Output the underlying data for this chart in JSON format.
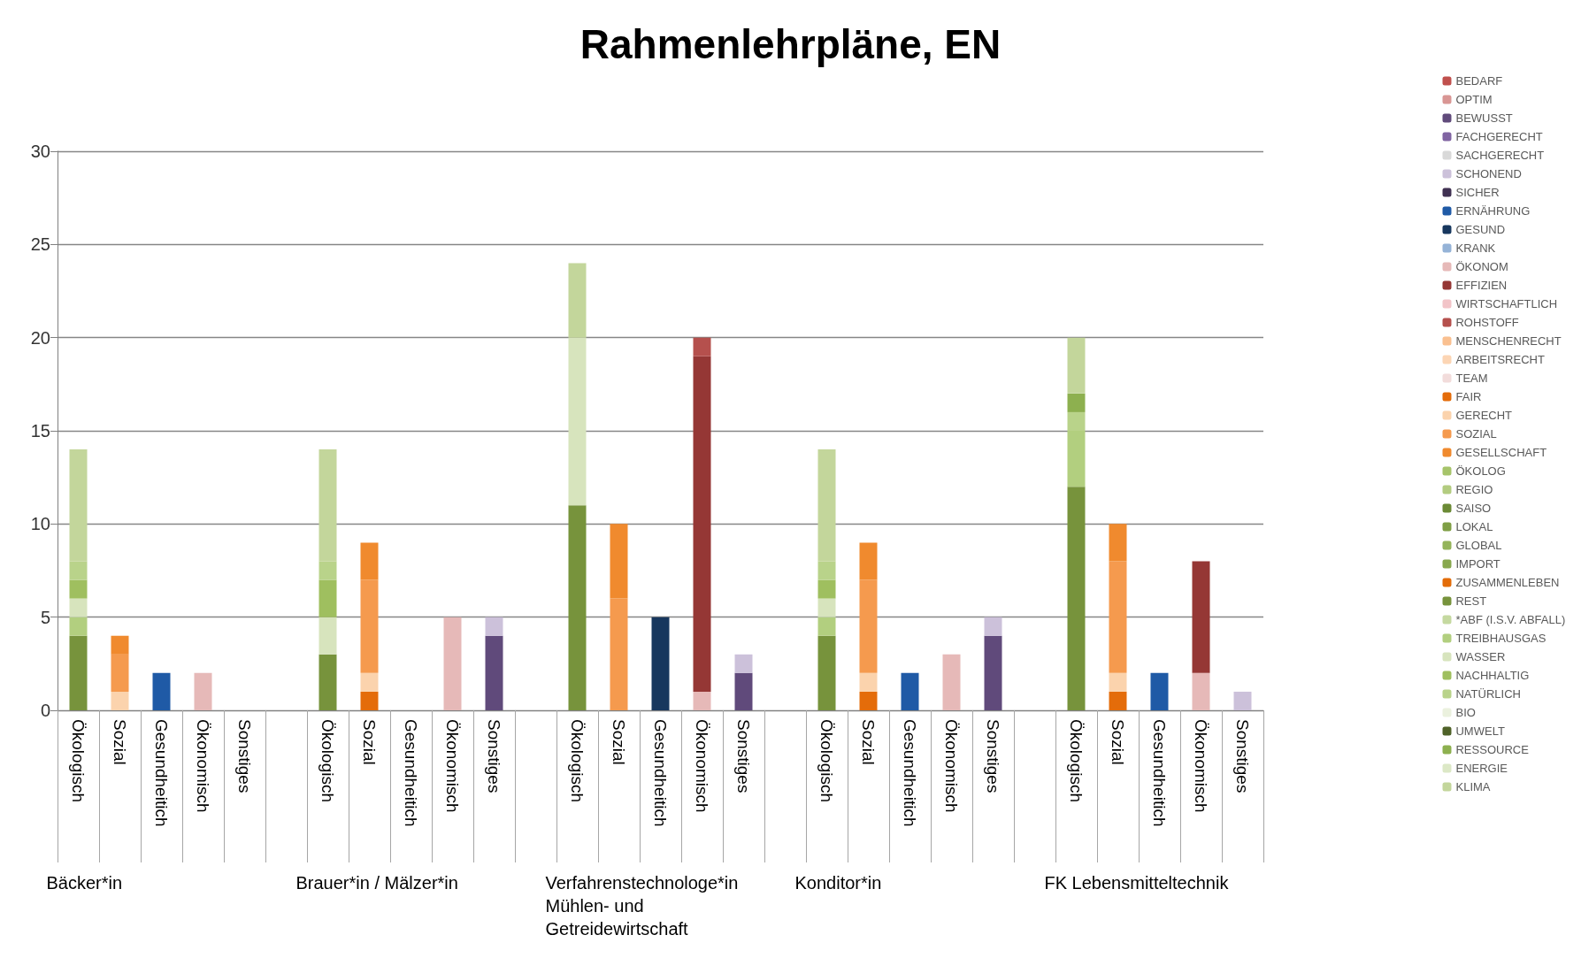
{
  "chart_data": {
    "type": "bar",
    "title": "Rahmenlehrpläne, EN",
    "stacked": true,
    "grid": "y",
    "legend": "right",
    "ylim": [
      0,
      30
    ],
    "yticks": [
      0,
      5,
      10,
      15,
      20,
      25,
      30
    ],
    "categories": [
      "Ökologisch",
      "Sozial",
      "Gesundheitich",
      "Ökonomisch",
      "Sonstiges",
      null,
      "Ökologisch",
      "Sozial",
      "Gesundheitich",
      "Ökonomisch",
      "Sonstiges",
      null,
      "Ökologisch",
      "Sozial",
      "Gesundheitich",
      "Ökonomisch",
      "Sonstiges",
      null,
      "Ökologisch",
      "Sozial",
      "Gesundheitich",
      "Ökonomisch",
      "Sonstiges",
      null,
      "Ökologisch",
      "Sozial",
      "Gesundheitich",
      "Ökonomisch",
      "Sonstiges"
    ],
    "annotations": [
      "Bäcker*in",
      "Brauer*in / Mälzer*in",
      "Verfahrenstechnologe*in Mühlen- und Getreidewirtschaft",
      "Konditor*in",
      "FK Lebensmitteltechnik"
    ],
    "series": [
      {
        "name": "BEDARF",
        "color": "#c0504d",
        "values": [
          null,
          null,
          null,
          null,
          null,
          null,
          null,
          null,
          null,
          null,
          null,
          null,
          null,
          null,
          null,
          null,
          null,
          null,
          null,
          null,
          null,
          null,
          null,
          null,
          null,
          null,
          null,
          null,
          null
        ]
      },
      {
        "name": "OPTIM",
        "color": "#d99694",
        "values": [
          null,
          null,
          null,
          null,
          null,
          null,
          null,
          null,
          null,
          null,
          null,
          null,
          null,
          null,
          null,
          null,
          null,
          null,
          null,
          null,
          null,
          null,
          null,
          null,
          null,
          null,
          null,
          null,
          null
        ]
      },
      {
        "name": "BEWUSST",
        "color": "#604a7b",
        "values": [
          null,
          null,
          null,
          null,
          null,
          null,
          null,
          null,
          null,
          null,
          4,
          null,
          null,
          null,
          null,
          null,
          2,
          null,
          null,
          null,
          null,
          null,
          4,
          null,
          null,
          null,
          null,
          null,
          null
        ]
      },
      {
        "name": "FACHGERECHT",
        "color": "#8064a2",
        "values": [
          null,
          null,
          null,
          null,
          null,
          null,
          null,
          null,
          null,
          null,
          null,
          null,
          null,
          null,
          null,
          null,
          null,
          null,
          null,
          null,
          null,
          null,
          null,
          null,
          null,
          null,
          null,
          null,
          null
        ]
      },
      {
        "name": "SACHGERECHT",
        "color": "#d9d9d9",
        "values": [
          null,
          null,
          null,
          null,
          null,
          null,
          null,
          null,
          null,
          null,
          null,
          null,
          null,
          null,
          null,
          null,
          null,
          null,
          null,
          null,
          null,
          null,
          null,
          null,
          null,
          null,
          null,
          null,
          null
        ]
      },
      {
        "name": "SCHONEND",
        "color": "#ccc1da",
        "values": [
          null,
          null,
          null,
          null,
          null,
          null,
          null,
          null,
          null,
          null,
          1,
          null,
          null,
          null,
          null,
          null,
          1,
          null,
          null,
          null,
          null,
          null,
          1,
          null,
          null,
          null,
          null,
          null,
          1
        ]
      },
      {
        "name": "SICHER",
        "color": "#403152",
        "values": [
          null,
          null,
          null,
          null,
          null,
          null,
          null,
          null,
          null,
          null,
          null,
          null,
          null,
          null,
          null,
          null,
          null,
          null,
          null,
          null,
          null,
          null,
          null,
          null,
          null,
          null,
          null,
          null,
          null
        ]
      },
      {
        "name": "ERNÄHRUNG",
        "color": "#1f5aa6",
        "values": [
          null,
          null,
          2,
          null,
          null,
          null,
          null,
          null,
          null,
          null,
          null,
          null,
          null,
          null,
          null,
          null,
          null,
          null,
          null,
          null,
          2,
          null,
          null,
          null,
          null,
          null,
          2,
          null,
          null
        ]
      },
      {
        "name": "GESUND",
        "color": "#17375e",
        "values": [
          null,
          null,
          null,
          null,
          null,
          null,
          null,
          null,
          null,
          null,
          null,
          null,
          null,
          null,
          5,
          null,
          null,
          null,
          null,
          null,
          null,
          null,
          null,
          null,
          null,
          null,
          null,
          null,
          null
        ]
      },
      {
        "name": "KRANK",
        "color": "#95b3d7",
        "values": [
          null,
          null,
          null,
          null,
          null,
          null,
          null,
          null,
          null,
          null,
          null,
          null,
          null,
          null,
          null,
          null,
          null,
          null,
          null,
          null,
          null,
          null,
          null,
          null,
          null,
          null,
          null,
          null,
          null
        ]
      },
      {
        "name": "ÖKONOM",
        "color": "#e6b9b8",
        "values": [
          null,
          null,
          null,
          2,
          null,
          null,
          null,
          null,
          null,
          5,
          null,
          null,
          null,
          null,
          null,
          1,
          null,
          null,
          null,
          null,
          null,
          3,
          null,
          null,
          null,
          null,
          null,
          2,
          null
        ]
      },
      {
        "name": "EFFIZIEN",
        "color": "#953735",
        "values": [
          null,
          null,
          null,
          null,
          null,
          null,
          null,
          null,
          null,
          null,
          null,
          null,
          null,
          null,
          null,
          18,
          null,
          null,
          null,
          null,
          null,
          null,
          null,
          null,
          null,
          null,
          null,
          6,
          null
        ]
      },
      {
        "name": "WIRTSCHAFTLICH",
        "color": "#f2c4c8",
        "values": [
          null,
          null,
          null,
          null,
          null,
          null,
          null,
          null,
          null,
          null,
          null,
          null,
          null,
          null,
          null,
          null,
          null,
          null,
          null,
          null,
          null,
          null,
          null,
          null,
          null,
          null,
          null,
          null,
          null
        ]
      },
      {
        "name": "ROHSTOFF",
        "color": "#b5504d",
        "values": [
          null,
          null,
          null,
          null,
          null,
          null,
          null,
          null,
          null,
          null,
          null,
          null,
          null,
          null,
          null,
          1,
          null,
          null,
          null,
          null,
          null,
          null,
          null,
          null,
          null,
          null,
          null,
          null,
          null
        ]
      },
      {
        "name": "MENSCHENRECHT",
        "color": "#fac090",
        "values": [
          null,
          null,
          null,
          null,
          null,
          null,
          null,
          null,
          null,
          null,
          null,
          null,
          null,
          null,
          null,
          null,
          null,
          null,
          null,
          null,
          null,
          null,
          null,
          null,
          null,
          null,
          null,
          null,
          null
        ]
      },
      {
        "name": "ARBEITSRECHT",
        "color": "#fcd5b4",
        "values": [
          null,
          null,
          null,
          null,
          null,
          null,
          null,
          null,
          null,
          null,
          null,
          null,
          null,
          null,
          null,
          null,
          null,
          null,
          null,
          null,
          null,
          null,
          null,
          null,
          null,
          null,
          null,
          null,
          null
        ]
      },
      {
        "name": "TEAM",
        "color": "#f2dcdb",
        "values": [
          null,
          null,
          null,
          null,
          null,
          null,
          null,
          null,
          null,
          null,
          null,
          null,
          null,
          null,
          null,
          null,
          null,
          null,
          null,
          null,
          null,
          null,
          null,
          null,
          null,
          null,
          null,
          null,
          null
        ]
      },
      {
        "name": "FAIR",
        "color": "#e46c0a",
        "values": [
          null,
          null,
          null,
          null,
          null,
          null,
          null,
          1,
          null,
          null,
          null,
          null,
          null,
          null,
          null,
          null,
          null,
          null,
          null,
          1,
          null,
          null,
          null,
          null,
          null,
          1,
          null,
          null,
          null
        ]
      },
      {
        "name": "GERECHT",
        "color": "#fbd3ad",
        "values": [
          null,
          1,
          null,
          null,
          null,
          null,
          null,
          1,
          null,
          null,
          null,
          null,
          null,
          null,
          null,
          null,
          null,
          null,
          null,
          1,
          null,
          null,
          null,
          null,
          null,
          1,
          null,
          null,
          null
        ]
      },
      {
        "name": "SOZIAL",
        "color": "#f59a4e",
        "values": [
          null,
          2,
          null,
          null,
          null,
          null,
          null,
          5,
          null,
          null,
          null,
          null,
          null,
          6,
          null,
          null,
          null,
          null,
          null,
          5,
          null,
          null,
          null,
          null,
          null,
          6,
          null,
          null,
          null
        ]
      },
      {
        "name": "GESELLSCHAFT",
        "color": "#f08a2e",
        "values": [
          null,
          1,
          null,
          null,
          null,
          null,
          null,
          2,
          null,
          null,
          null,
          null,
          null,
          4,
          null,
          null,
          null,
          null,
          null,
          2,
          null,
          null,
          null,
          null,
          null,
          2,
          null,
          null,
          null
        ]
      },
      {
        "name": "ÖKOLOG",
        "color": "#a6c46a",
        "values": [
          null,
          null,
          null,
          null,
          null,
          null,
          null,
          null,
          null,
          null,
          null,
          null,
          null,
          null,
          null,
          null,
          null,
          null,
          null,
          null,
          null,
          null,
          null,
          null,
          null,
          null,
          null,
          null,
          null
        ]
      },
      {
        "name": "REGIO",
        "color": "#b3cc80",
        "values": [
          null,
          null,
          null,
          null,
          null,
          null,
          null,
          null,
          null,
          null,
          null,
          null,
          null,
          null,
          null,
          null,
          null,
          null,
          null,
          null,
          null,
          null,
          null,
          null,
          null,
          null,
          null,
          null,
          null
        ]
      },
      {
        "name": "SAISO",
        "color": "#6b8a35",
        "values": [
          null,
          null,
          null,
          null,
          null,
          null,
          null,
          null,
          null,
          null,
          null,
          null,
          null,
          null,
          null,
          null,
          null,
          null,
          null,
          null,
          null,
          null,
          null,
          null,
          null,
          null,
          null,
          null,
          null
        ]
      },
      {
        "name": "LOKAL",
        "color": "#7f9f45",
        "values": [
          null,
          null,
          null,
          null,
          null,
          null,
          null,
          null,
          null,
          null,
          null,
          null,
          null,
          null,
          null,
          null,
          null,
          null,
          null,
          null,
          null,
          null,
          null,
          null,
          null,
          null,
          null,
          null,
          null
        ]
      },
      {
        "name": "GLOBAL",
        "color": "#94b45a",
        "values": [
          null,
          null,
          null,
          null,
          null,
          null,
          null,
          null,
          null,
          null,
          null,
          null,
          null,
          null,
          null,
          null,
          null,
          null,
          null,
          null,
          null,
          null,
          null,
          null,
          null,
          null,
          null,
          null,
          null
        ]
      },
      {
        "name": "IMPORT",
        "color": "#88a84e",
        "values": [
          null,
          null,
          null,
          null,
          null,
          null,
          null,
          null,
          null,
          null,
          null,
          null,
          null,
          null,
          null,
          null,
          null,
          null,
          null,
          null,
          null,
          null,
          null,
          null,
          null,
          null,
          null,
          null,
          null
        ]
      },
      {
        "name": "ZUSAMMENLEBEN",
        "color": "#e36c09",
        "values": [
          null,
          null,
          null,
          null,
          null,
          null,
          null,
          null,
          null,
          null,
          null,
          null,
          null,
          null,
          null,
          null,
          null,
          null,
          null,
          null,
          null,
          null,
          null,
          null,
          null,
          null,
          null,
          null,
          null
        ]
      },
      {
        "name": "REST",
        "color": "#77933c",
        "values": [
          4,
          null,
          null,
          null,
          null,
          null,
          3,
          null,
          null,
          null,
          null,
          null,
          11,
          null,
          null,
          null,
          null,
          null,
          4,
          null,
          null,
          null,
          null,
          null,
          12,
          null,
          null,
          null,
          null
        ]
      },
      {
        "name": "*ABF (I.S.V. ABFALL)",
        "color": "#c5d9a0",
        "values": [
          null,
          null,
          null,
          null,
          null,
          null,
          null,
          null,
          null,
          null,
          null,
          null,
          null,
          null,
          null,
          null,
          null,
          null,
          null,
          null,
          null,
          null,
          null,
          null,
          null,
          null,
          null,
          null,
          null
        ]
      },
      {
        "name": "TREIBHAUSGAS",
        "color": "#b2cf7f",
        "values": [
          1,
          null,
          null,
          null,
          null,
          null,
          null,
          null,
          null,
          null,
          null,
          null,
          null,
          null,
          null,
          null,
          null,
          null,
          1,
          null,
          null,
          null,
          null,
          null,
          3,
          null,
          null,
          null,
          null
        ]
      },
      {
        "name": "WASSER",
        "color": "#d7e4bd",
        "values": [
          1,
          null,
          null,
          null,
          null,
          null,
          2,
          null,
          null,
          null,
          null,
          null,
          9,
          null,
          null,
          null,
          null,
          null,
          1,
          null,
          null,
          null,
          null,
          null,
          null,
          null,
          null,
          null,
          null
        ]
      },
      {
        "name": "NACHHALTIG",
        "color": "#9fbf5f",
        "values": [
          1,
          null,
          null,
          null,
          null,
          null,
          2,
          null,
          null,
          null,
          null,
          null,
          null,
          null,
          null,
          null,
          null,
          null,
          1,
          null,
          null,
          null,
          null,
          null,
          null,
          null,
          null,
          null,
          null
        ]
      },
      {
        "name": "NATÜRLICH",
        "color": "#b9d38a",
        "values": [
          1,
          null,
          null,
          null,
          null,
          null,
          1,
          null,
          null,
          null,
          null,
          null,
          null,
          null,
          null,
          null,
          null,
          null,
          1,
          null,
          null,
          null,
          null,
          null,
          1,
          null,
          null,
          null,
          null
        ]
      },
      {
        "name": "BIO",
        "color": "#ebf1de",
        "values": [
          null,
          null,
          null,
          null,
          null,
          null,
          null,
          null,
          null,
          null,
          null,
          null,
          null,
          null,
          null,
          null,
          null,
          null,
          null,
          null,
          null,
          null,
          null,
          null,
          null,
          null,
          null,
          null,
          null
        ]
      },
      {
        "name": "UMWELT",
        "color": "#4f6228",
        "values": [
          null,
          null,
          null,
          null,
          null,
          null,
          null,
          null,
          null,
          null,
          null,
          null,
          null,
          null,
          null,
          null,
          null,
          null,
          null,
          null,
          null,
          null,
          null,
          null,
          null,
          null,
          null,
          null,
          null
        ]
      },
      {
        "name": "RESSOURCE",
        "color": "#8db04f",
        "values": [
          null,
          null,
          null,
          null,
          null,
          null,
          null,
          null,
          null,
          null,
          null,
          null,
          null,
          null,
          null,
          null,
          null,
          null,
          null,
          null,
          null,
          null,
          null,
          null,
          1,
          null,
          null,
          null,
          null
        ]
      },
      {
        "name": "ENERGIE",
        "color": "#dce8c6",
        "values": [
          null,
          null,
          null,
          null,
          null,
          null,
          null,
          null,
          null,
          null,
          null,
          null,
          null,
          null,
          null,
          null,
          null,
          null,
          null,
          null,
          null,
          null,
          null,
          null,
          null,
          null,
          null,
          null,
          null
        ]
      },
      {
        "name": "KLIMA",
        "color": "#c3d69b",
        "values": [
          6,
          null,
          null,
          null,
          null,
          null,
          6,
          null,
          null,
          null,
          null,
          null,
          4,
          null,
          null,
          null,
          null,
          null,
          6,
          null,
          null,
          null,
          null,
          null,
          3,
          null,
          null,
          null,
          null
        ]
      }
    ]
  }
}
